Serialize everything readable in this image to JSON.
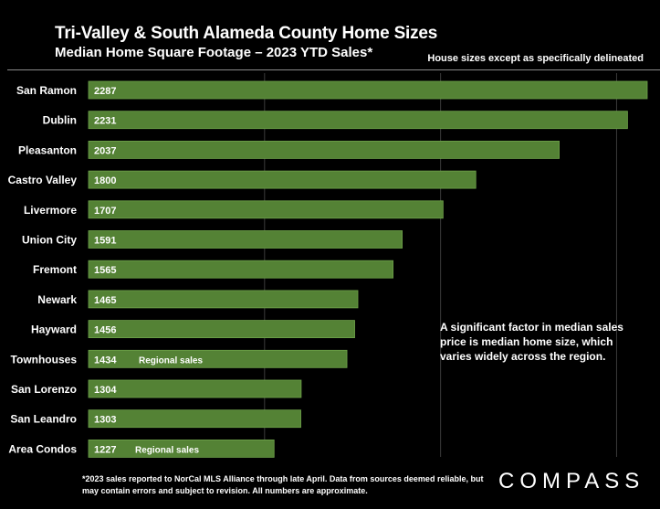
{
  "header": {
    "title": "Tri-Valley & South Alameda County Home Sizes",
    "subtitle": "Median Home Square Footage – 2023 YTD Sales*",
    "note": "House sizes except as specifically delineated"
  },
  "annotation": "A significant factor in median sales price is median home size, which varies widely across the region.",
  "footnote": "*2023 sales reported to NorCal MLS Alliance through late April. Data from sources deemed reliable, but may contain errors and subject to revision. All numbers are approximate.",
  "logo": "COMPASS",
  "colors": {
    "bar": "#548235",
    "bar_border": "#6fa34a",
    "grid": "#3a3a3a",
    "background": "#000000"
  },
  "chart_data": {
    "type": "bar",
    "orientation": "horizontal",
    "categories": [
      "San Ramon",
      "Dublin",
      "Pleasanton",
      "Castro Valley",
      "Livermore",
      "Union City",
      "Fremont",
      "Newark",
      "Hayward",
      "Townhouses",
      "San Lorenzo",
      "San Leandro",
      "Area Condos"
    ],
    "values": [
      2287,
      2231,
      2037,
      1800,
      1707,
      1591,
      1565,
      1465,
      1456,
      1434,
      1304,
      1303,
      1227
    ],
    "bar_notes": [
      "",
      "",
      "",
      "",
      "",
      "",
      "",
      "",
      "",
      "Regional sales",
      "",
      "",
      "Regional sales"
    ],
    "xlim": [
      700,
      2300
    ],
    "grid": true,
    "title": "Tri-Valley & South Alameda County Home Sizes",
    "subtitle": "Median Home Square Footage – 2023 YTD Sales*"
  }
}
